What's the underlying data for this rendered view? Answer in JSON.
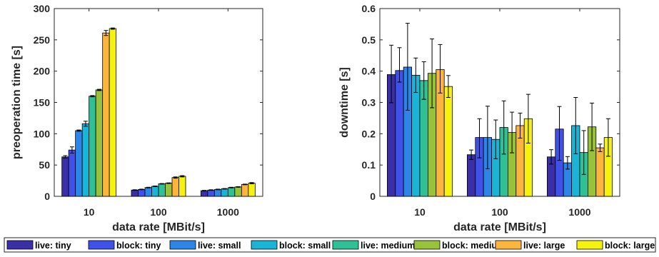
{
  "series_names": [
    "live: tiny",
    "block: tiny",
    "live: small",
    "block: small",
    "live: medium",
    "block: medium",
    "live: large",
    "block: large"
  ],
  "series_colors": [
    "#3b2fa7",
    "#3f51e8",
    "#2b86e8",
    "#1ab4d6",
    "#2fc096",
    "#97c23a",
    "#fbb43c",
    "#f5f20f"
  ],
  "chart_data": [
    {
      "type": "bar",
      "xlabel": "data rate [MBit/s]",
      "ylabel": "preoperation time [s]",
      "categories": [
        "10",
        "100",
        "1000"
      ],
      "ylim": [
        0,
        300
      ],
      "yticks": [
        0,
        50,
        100,
        150,
        200,
        250,
        300
      ],
      "ytick_labels": [
        "0",
        "50",
        "100",
        "150",
        "200",
        "250",
        "300"
      ],
      "grid": false,
      "series": [
        {
          "name": "live: tiny",
          "values": [
            63,
            10,
            9
          ],
          "err": [
            [
              2,
              2
            ],
            [
              0.5,
              0.5
            ],
            [
              0.5,
              0.5
            ]
          ]
        },
        {
          "name": "block: tiny",
          "values": [
            74,
            11,
            10
          ],
          "err": [
            [
              5,
              5
            ],
            [
              0.5,
              0.5
            ],
            [
              0.5,
              0.5
            ]
          ]
        },
        {
          "name": "live: small",
          "values": [
            105,
            14,
            11
          ],
          "err": [
            [
              1,
              1
            ],
            [
              0.5,
              0.5
            ],
            [
              0.5,
              0.5
            ]
          ]
        },
        {
          "name": "block: small",
          "values": [
            116,
            16,
            12
          ],
          "err": [
            [
              4,
              4
            ],
            [
              0.5,
              0.5
            ],
            [
              0.5,
              0.5
            ]
          ]
        },
        {
          "name": "live: medium",
          "values": [
            160,
            20,
            14
          ],
          "err": [
            [
              1,
              1
            ],
            [
              0.5,
              0.5
            ],
            [
              0.5,
              0.5
            ]
          ]
        },
        {
          "name": "block: medium",
          "values": [
            170,
            21,
            15
          ],
          "err": [
            [
              1,
              1
            ],
            [
              0.5,
              0.5
            ],
            [
              0.5,
              0.5
            ]
          ]
        },
        {
          "name": "live: large",
          "values": [
            261,
            30,
            19
          ],
          "err": [
            [
              4,
              4
            ],
            [
              1,
              1
            ],
            [
              0.5,
              0.5
            ]
          ]
        },
        {
          "name": "block: large",
          "values": [
            268,
            32,
            21
          ],
          "err": [
            [
              1,
              1
            ],
            [
              1,
              1
            ],
            [
              1,
              1
            ]
          ]
        }
      ]
    },
    {
      "type": "bar",
      "xlabel": "data rate [MBit/s]",
      "ylabel": "downtime [s]",
      "categories": [
        "10",
        "100",
        "1000"
      ],
      "ylim": [
        0,
        0.6
      ],
      "yticks": [
        0,
        0.1,
        0.2,
        0.3,
        0.4,
        0.5,
        0.6
      ],
      "ytick_labels": [
        "0",
        "0.1",
        "0.2",
        "0.3",
        "0.4",
        "0.5",
        "0.6"
      ],
      "grid": false,
      "series": [
        {
          "name": "live: tiny",
          "values": [
            0.389,
            0.133,
            0.126
          ],
          "err": [
            [
              0.09,
              0.094
            ],
            [
              0.015,
              0.015
            ],
            [
              0.023,
              0.023
            ]
          ]
        },
        {
          "name": "block: tiny",
          "values": [
            0.402,
            0.188,
            0.215
          ],
          "err": [
            [
              0.037,
              0.073
            ],
            [
              0.065,
              0.06
            ],
            [
              0.1,
              0.072
            ]
          ]
        },
        {
          "name": "live: small",
          "values": [
            0.413,
            0.188,
            0.107
          ],
          "err": [
            [
              0.138,
              0.14
            ],
            [
              0.1,
              0.1
            ],
            [
              0.02,
              0.02
            ]
          ]
        },
        {
          "name": "block: small",
          "values": [
            0.387,
            0.182,
            0.226
          ],
          "err": [
            [
              0.055,
              0.055
            ],
            [
              0.062,
              0.062
            ],
            [
              0.09,
              0.09
            ]
          ]
        },
        {
          "name": "live: medium",
          "values": [
            0.37,
            0.22,
            0.14
          ],
          "err": [
            [
              0.06,
              0.06
            ],
            [
              0.085,
              0.085
            ],
            [
              0.07,
              0.07
            ]
          ]
        },
        {
          "name": "block: medium",
          "values": [
            0.393,
            0.204,
            0.222
          ],
          "err": [
            [
              0.11,
              0.11
            ],
            [
              0.065,
              0.065
            ],
            [
              0.076,
              0.076
            ]
          ]
        },
        {
          "name": "live: large",
          "values": [
            0.405,
            0.226,
            0.155
          ],
          "err": [
            [
              0.075,
              0.08
            ],
            [
              0.04,
              0.04
            ],
            [
              0.012,
              0.012
            ]
          ]
        },
        {
          "name": "block: large",
          "values": [
            0.351,
            0.248,
            0.188
          ],
          "err": [
            [
              0.035,
              0.035
            ],
            [
              0.078,
              0.078
            ],
            [
              0.06,
              0.06
            ]
          ]
        }
      ]
    }
  ],
  "legend": {
    "placement": "bottom",
    "items": [
      "live: tiny",
      "block: tiny",
      "live: small",
      "block: small",
      "live: medium",
      "block: medium",
      "live: large",
      "block: large"
    ]
  }
}
